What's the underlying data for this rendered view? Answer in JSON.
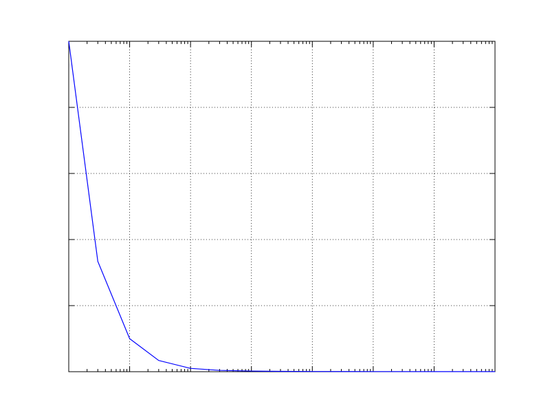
{
  "chart_data": {
    "type": "line",
    "title": "",
    "xlabel": "",
    "ylabel": "",
    "xscale": "log",
    "xlim": [
      1,
      10000000
    ],
    "ylim": [
      0,
      5
    ],
    "grid": true,
    "tick_labels_visible": false,
    "series": [
      {
        "color": "#0000ff",
        "x": [
          1,
          3,
          10,
          30,
          100,
          300,
          1000,
          3000,
          10000,
          100000,
          1000000,
          10000000
        ],
        "y": [
          5.0,
          1.67,
          0.5,
          0.17,
          0.05,
          0.02,
          0.01,
          0.005,
          0.003,
          0.002,
          0.001,
          0.001
        ]
      }
    ]
  }
}
